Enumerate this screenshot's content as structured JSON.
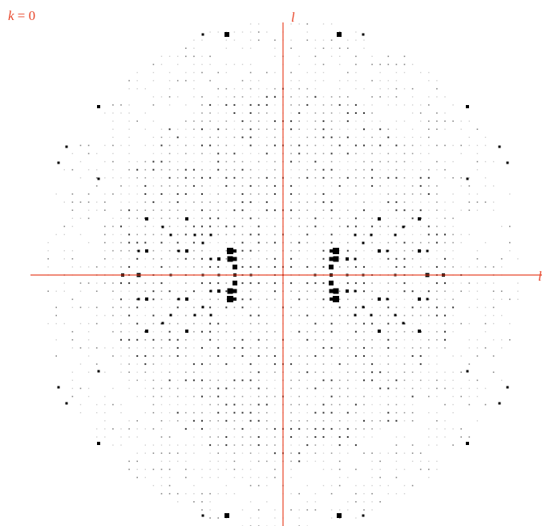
{
  "panel_label_var": "k",
  "panel_label_value": " = 0",
  "axis_vertical_label": "l",
  "axis_horizontal_label": "l",
  "colors": {
    "axis": "#e8462a",
    "label": "#e8462a",
    "spot": "#000000",
    "background": "#ffffff"
  }
}
